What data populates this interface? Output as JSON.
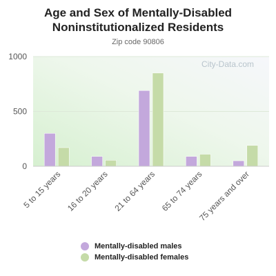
{
  "chart_data": {
    "type": "bar",
    "title": "Age and Sex of Mentally-Disabled Noninstitutionalized Residents",
    "subtitle": "Zip code 90806",
    "watermark": "City-Data.com",
    "categories": [
      "5 to 15 years",
      "16 to 20 years",
      "21 to 64 years",
      "65 to 74 years",
      "75 years and over"
    ],
    "series": [
      {
        "name": "Mentally-disabled males",
        "values": [
          300,
          90,
          690,
          90,
          50
        ],
        "color": "#c3a8dc"
      },
      {
        "name": "Mentally-disabled females",
        "values": [
          170,
          55,
          850,
          110,
          190
        ],
        "color": "#c5dba8"
      }
    ],
    "yticks": [
      0,
      500,
      1000
    ],
    "ylim": [
      0,
      1000
    ],
    "xlabel": "",
    "ylabel": "",
    "grid": true,
    "legend_position": "bottom"
  }
}
